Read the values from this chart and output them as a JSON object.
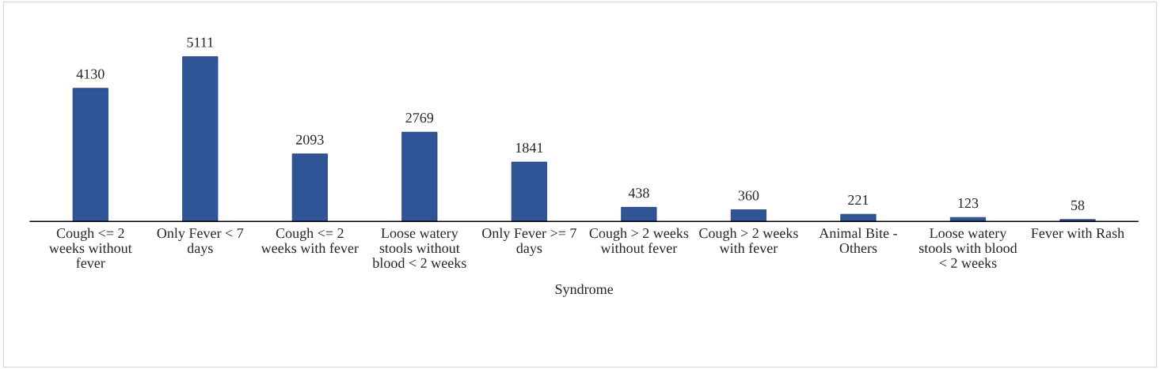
{
  "chart_data": {
    "type": "bar",
    "xlabel": "Syndrome",
    "categories": [
      "Cough <= 2 weeks without fever",
      "Only Fever < 7 days",
      "Cough <= 2 weeks with fever",
      "Loose watery stools without blood < 2 weeks",
      "Only Fever >= 7 days",
      "Cough > 2 weeks without fever",
      "Cough > 2 weeks with fever",
      "Animal Bite - Others",
      "Loose watery stools with blood < 2 weeks",
      "Fever with Rash"
    ],
    "values": [
      4130,
      5111,
      2093,
      2769,
      1841,
      438,
      360,
      221,
      123,
      58
    ],
    "color": "#2f5597",
    "data_labels": true,
    "grid": false,
    "legend": false,
    "tick_labels": "x"
  }
}
